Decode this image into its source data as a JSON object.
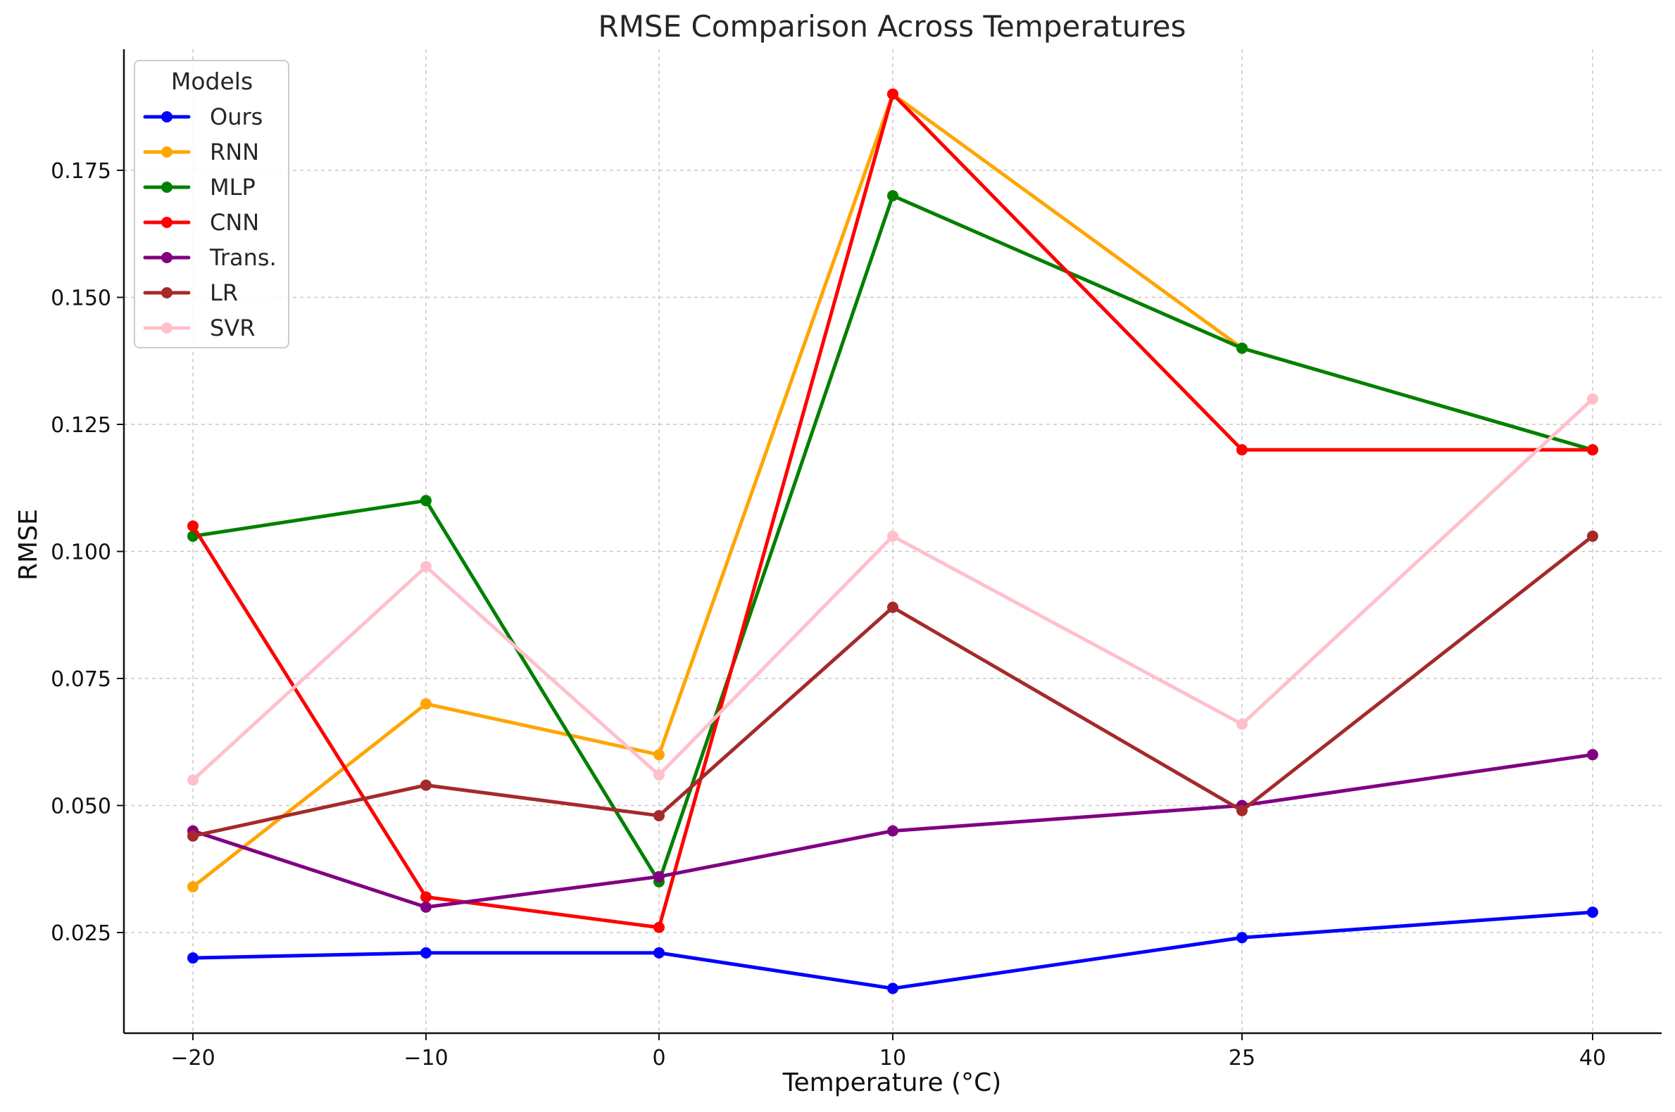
{
  "chart_data": {
    "type": "line",
    "title": "RMSE Comparison Across Temperatures",
    "xlabel": "Temperature (°C)",
    "ylabel": "RMSE",
    "x": [
      -20,
      -10,
      0,
      10,
      25,
      40
    ],
    "x_tick_labels": [
      "−20",
      "−10",
      "0",
      "10",
      "25",
      "40"
    ],
    "y_ticks": [
      0.025,
      0.05,
      0.075,
      0.1,
      0.125,
      0.15,
      0.175
    ],
    "y_tick_labels": [
      "0.025",
      "0.050",
      "0.075",
      "0.100",
      "0.125",
      "0.150",
      "0.175"
    ],
    "ylim": [
      0.006,
      0.199
    ],
    "grid": true,
    "legend": {
      "title": "Models",
      "placement": "top-left"
    },
    "series": [
      {
        "name": "Ours",
        "color": "#0000ff",
        "values": [
          0.02,
          0.021,
          0.021,
          0.014,
          0.024,
          0.029
        ]
      },
      {
        "name": "RNN",
        "color": "#ffa500",
        "values": [
          0.034,
          0.07,
          0.06,
          0.19,
          0.14,
          0.12
        ]
      },
      {
        "name": "MLP",
        "color": "#008000",
        "values": [
          0.103,
          0.11,
          0.035,
          0.17,
          0.14,
          0.12
        ]
      },
      {
        "name": "CNN",
        "color": "#ff0000",
        "values": [
          0.105,
          0.032,
          0.026,
          0.19,
          0.12,
          0.12
        ]
      },
      {
        "name": "Trans.",
        "color": "#800080",
        "values": [
          0.045,
          0.03,
          0.036,
          0.045,
          0.05,
          0.06
        ]
      },
      {
        "name": "LR",
        "color": "#a52a2a",
        "values": [
          0.044,
          0.054,
          0.048,
          0.089,
          0.049,
          0.103
        ]
      },
      {
        "name": "SVR",
        "color": "#ffc0cb",
        "values": [
          0.055,
          0.097,
          0.056,
          0.103,
          0.066,
          0.13
        ]
      }
    ]
  }
}
